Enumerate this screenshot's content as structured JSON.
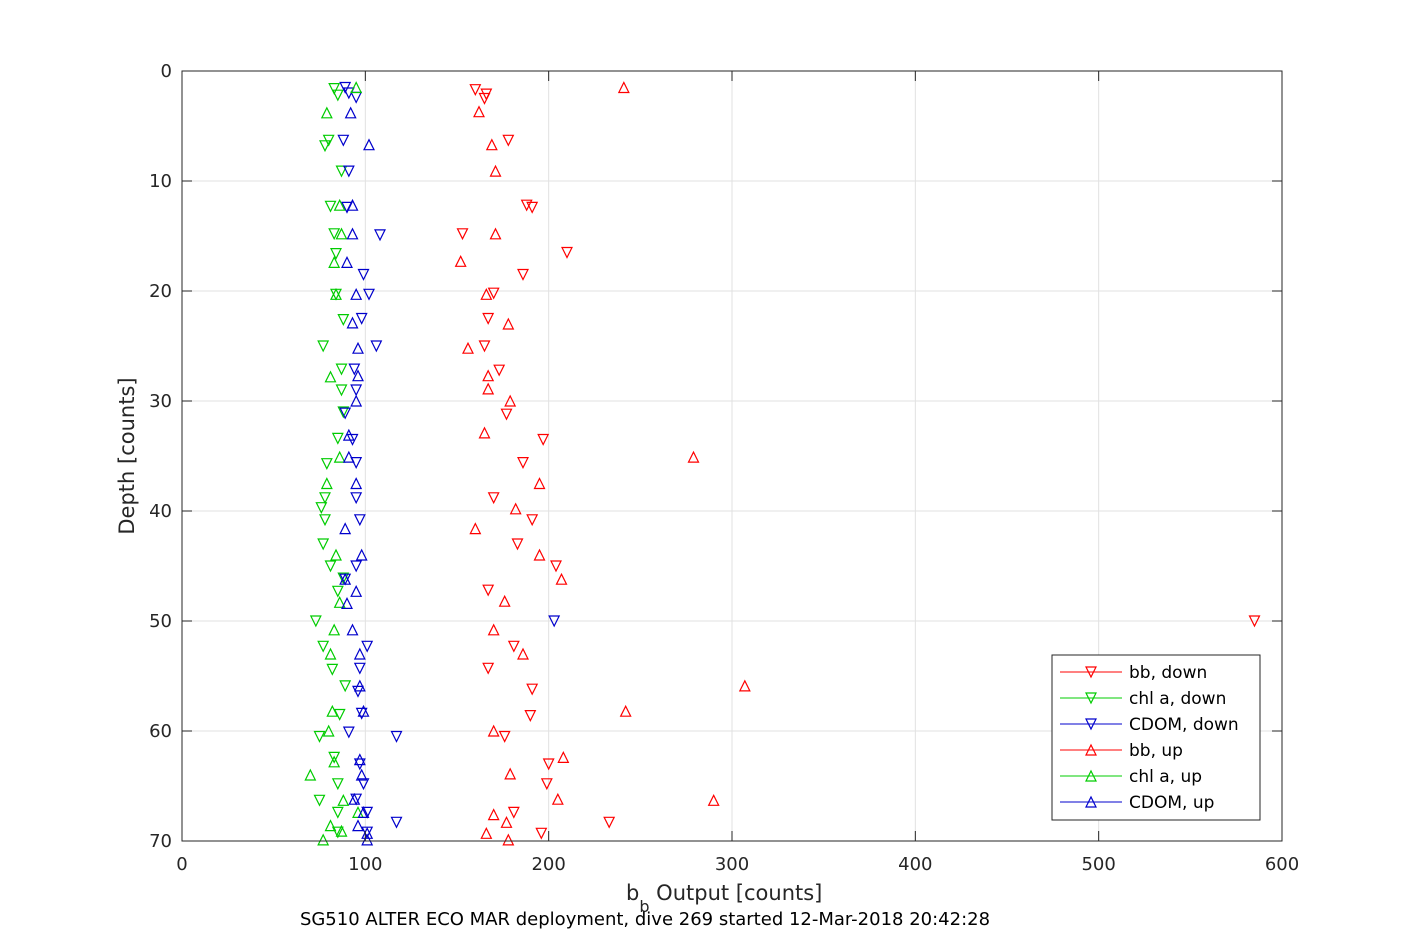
{
  "chart_data": {
    "type": "scatter",
    "title": "",
    "xlabel_main": "b",
    "xlabel_sub": "b",
    "xlabel_rest": " Output [counts]",
    "ylabel": "Depth [counts]",
    "xlim": [
      0,
      600
    ],
    "ylim": [
      0,
      70
    ],
    "y_reversed": true,
    "xticks": [
      "0",
      "100",
      "200",
      "300",
      "400",
      "500",
      "600"
    ],
    "yticks": [
      "0",
      "10",
      "20",
      "30",
      "40",
      "50",
      "60",
      "70"
    ],
    "grid": true,
    "legend_position": "bottom-right",
    "footer": "SG510 ALTER ECO MAR deployment, dive 269 started 12-Mar-2018 20:42:28",
    "series": [
      {
        "name": "bb, down",
        "color": "#ff0000",
        "marker": "triangle-down",
        "points": [
          [
            160,
            1.7
          ],
          [
            166,
            2.1
          ],
          [
            165,
            2.5
          ],
          [
            178,
            6.3
          ],
          [
            188,
            12.2
          ],
          [
            191,
            12.4
          ],
          [
            153,
            14.8
          ],
          [
            210,
            16.5
          ],
          [
            186,
            18.5
          ],
          [
            170,
            20.2
          ],
          [
            167,
            22.5
          ],
          [
            165,
            25.0
          ],
          [
            173,
            27.2
          ],
          [
            177,
            31.2
          ],
          [
            197,
            33.5
          ],
          [
            186,
            35.6
          ],
          [
            170,
            38.8
          ],
          [
            191,
            40.8
          ],
          [
            183,
            43.0
          ],
          [
            204,
            45.0
          ],
          [
            167,
            47.2
          ],
          [
            585,
            50.0
          ],
          [
            181,
            52.3
          ],
          [
            167,
            54.3
          ],
          [
            191,
            56.2
          ],
          [
            190,
            58.6
          ],
          [
            176,
            60.5
          ],
          [
            200,
            63.0
          ],
          [
            199,
            64.8
          ],
          [
            181,
            67.4
          ],
          [
            233,
            68.3
          ],
          [
            196,
            69.3
          ]
        ]
      },
      {
        "name": "chl a, down",
        "color": "#00cc00",
        "marker": "triangle-down",
        "points": [
          [
            83,
            1.6
          ],
          [
            85,
            2.2
          ],
          [
            80,
            6.3
          ],
          [
            78,
            6.8
          ],
          [
            87,
            9.1
          ],
          [
            81,
            12.3
          ],
          [
            83,
            14.8
          ],
          [
            84,
            16.6
          ],
          [
            84,
            20.3
          ],
          [
            88,
            22.6
          ],
          [
            77,
            25.0
          ],
          [
            87,
            27.1
          ],
          [
            87,
            29.0
          ],
          [
            88,
            31.0
          ],
          [
            85,
            33.4
          ],
          [
            79,
            35.7
          ],
          [
            78,
            38.8
          ],
          [
            76,
            39.7
          ],
          [
            78,
            40.8
          ],
          [
            77,
            43.0
          ],
          [
            81,
            45.0
          ],
          [
            88,
            46.1
          ],
          [
            85,
            47.3
          ],
          [
            73,
            50.0
          ],
          [
            77,
            52.3
          ],
          [
            82,
            54.4
          ],
          [
            89,
            55.9
          ],
          [
            86,
            58.5
          ],
          [
            75,
            60.5
          ],
          [
            83,
            62.4
          ],
          [
            85,
            64.8
          ],
          [
            75,
            66.3
          ],
          [
            85,
            67.4
          ],
          [
            85,
            69.2
          ]
        ]
      },
      {
        "name": "CDOM, down",
        "color": "#0000cc",
        "marker": "triangle-down",
        "points": [
          [
            89,
            1.5
          ],
          [
            91,
            2.0
          ],
          [
            95,
            2.4
          ],
          [
            88,
            6.3
          ],
          [
            91,
            9.1
          ],
          [
            90,
            12.4
          ],
          [
            108,
            14.9
          ],
          [
            99,
            18.5
          ],
          [
            102,
            20.3
          ],
          [
            98,
            22.5
          ],
          [
            106,
            25.0
          ],
          [
            94,
            27.1
          ],
          [
            95,
            29.0
          ],
          [
            89,
            31.1
          ],
          [
            93,
            33.5
          ],
          [
            95,
            35.6
          ],
          [
            95,
            38.8
          ],
          [
            97,
            40.8
          ],
          [
            95,
            45.0
          ],
          [
            89,
            46.2
          ],
          [
            203,
            50.0
          ],
          [
            101,
            52.3
          ],
          [
            97,
            54.3
          ],
          [
            96,
            56.4
          ],
          [
            98,
            58.4
          ],
          [
            117,
            60.5
          ],
          [
            91,
            60.1
          ],
          [
            97,
            63.0
          ],
          [
            99,
            64.8
          ],
          [
            95,
            66.2
          ],
          [
            101,
            67.4
          ],
          [
            101,
            69.2
          ],
          [
            117,
            68.3
          ]
        ]
      },
      {
        "name": "bb, up",
        "color": "#ff0000",
        "marker": "triangle-up",
        "points": [
          [
            241,
            1.5
          ],
          [
            162,
            3.7
          ],
          [
            169,
            6.7
          ],
          [
            171,
            9.1
          ],
          [
            171,
            14.8
          ],
          [
            152,
            17.3
          ],
          [
            166,
            20.3
          ],
          [
            178,
            23.0
          ],
          [
            156,
            25.2
          ],
          [
            167,
            27.7
          ],
          [
            167,
            28.9
          ],
          [
            179,
            30.0
          ],
          [
            165,
            32.9
          ],
          [
            279,
            35.1
          ],
          [
            195,
            37.5
          ],
          [
            182,
            39.8
          ],
          [
            160,
            41.6
          ],
          [
            195,
            44.0
          ],
          [
            207,
            46.2
          ],
          [
            176,
            48.2
          ],
          [
            170,
            50.8
          ],
          [
            186,
            53.0
          ],
          [
            307,
            55.9
          ],
          [
            242,
            58.2
          ],
          [
            170,
            60.0
          ],
          [
            208,
            62.4
          ],
          [
            179,
            63.9
          ],
          [
            205,
            66.2
          ],
          [
            290,
            66.3
          ],
          [
            170,
            67.6
          ],
          [
            177,
            68.3
          ],
          [
            166,
            69.3
          ],
          [
            178,
            69.9
          ]
        ]
      },
      {
        "name": "chl a, up",
        "color": "#00cc00",
        "marker": "triangle-up",
        "points": [
          [
            95,
            1.5
          ],
          [
            79,
            3.8
          ],
          [
            83,
            17.4
          ],
          [
            84,
            20.3
          ],
          [
            86,
            12.2
          ],
          [
            87,
            14.8
          ],
          [
            81,
            27.8
          ],
          [
            86,
            35.1
          ],
          [
            79,
            37.5
          ],
          [
            84,
            44.0
          ],
          [
            86,
            48.3
          ],
          [
            83,
            50.8
          ],
          [
            81,
            53.0
          ],
          [
            82,
            58.2
          ],
          [
            80,
            60.0
          ],
          [
            83,
            62.8
          ],
          [
            70,
            64.0
          ],
          [
            88,
            66.3
          ],
          [
            96,
            67.4
          ],
          [
            81,
            68.6
          ],
          [
            87,
            69.1
          ],
          [
            77,
            69.9
          ]
        ]
      },
      {
        "name": "CDOM, up",
        "color": "#0000cc",
        "marker": "triangle-up",
        "points": [
          [
            92,
            3.8
          ],
          [
            102,
            6.7
          ],
          [
            93,
            12.2
          ],
          [
            93,
            14.8
          ],
          [
            90,
            17.4
          ],
          [
            95,
            20.3
          ],
          [
            93,
            22.9
          ],
          [
            96,
            25.2
          ],
          [
            96,
            27.7
          ],
          [
            95,
            30.0
          ],
          [
            91,
            33.1
          ],
          [
            91,
            35.1
          ],
          [
            95,
            37.5
          ],
          [
            89,
            41.6
          ],
          [
            98,
            44.0
          ],
          [
            89,
            46.2
          ],
          [
            95,
            47.3
          ],
          [
            90,
            48.4
          ],
          [
            93,
            50.8
          ],
          [
            97,
            53.0
          ],
          [
            97,
            55.9
          ],
          [
            99,
            58.2
          ],
          [
            97,
            62.6
          ],
          [
            98,
            64.0
          ],
          [
            94,
            66.2
          ],
          [
            99,
            67.4
          ],
          [
            96,
            68.6
          ],
          [
            101,
            69.3
          ],
          [
            101,
            69.9
          ]
        ]
      }
    ]
  }
}
